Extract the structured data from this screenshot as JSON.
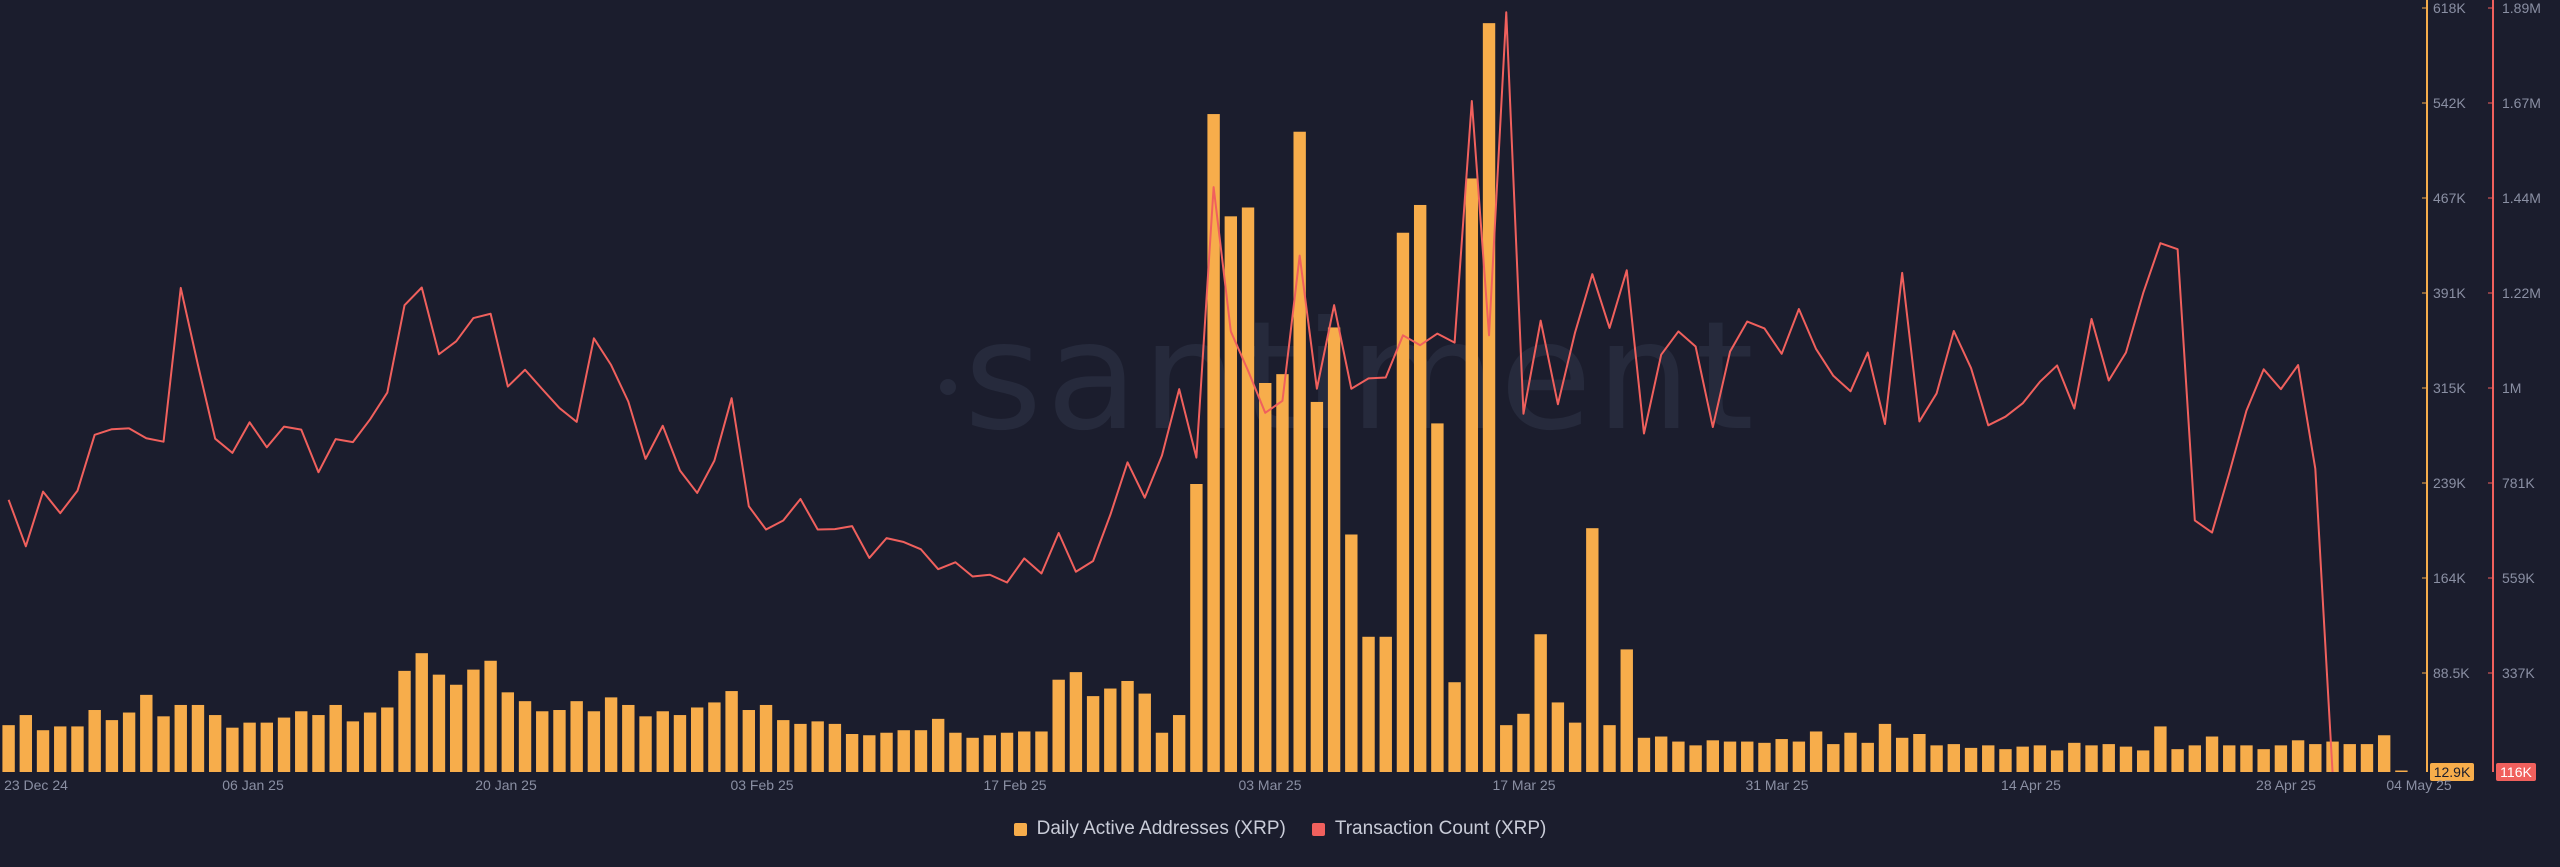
{
  "watermark": "santiment",
  "legend": [
    {
      "label": "Daily Active Addresses (XRP)",
      "color": "#f7ad4b"
    },
    {
      "label": "Transaction Count (XRP)",
      "color": "#f0605d"
    }
  ],
  "chart_data": {
    "type": "bar",
    "title": "",
    "x_ticks": [
      "23 Dec 24",
      "06 Jan 25",
      "20 Jan 25",
      "03 Feb 25",
      "17 Feb 25",
      "03 Mar 25",
      "17 Mar 25",
      "31 Mar 25",
      "14 Apr 25",
      "28 Apr 25",
      "04 May 25"
    ],
    "left_axis": {
      "name": "Daily Active Addresses (XRP)",
      "color": "#f7ad4b",
      "ticks": [
        "618K",
        "542K",
        "467K",
        "391K",
        "315K",
        "239K",
        "164K",
        "88.5K"
      ],
      "range": [
        12900,
        618000
      ],
      "current_label": "12.9K"
    },
    "right_axis": {
      "name": "Transaction Count (XRP)",
      "color": "#f0605d",
      "ticks": [
        "1.89M",
        "1.67M",
        "1.44M",
        "1.22M",
        "1M",
        "781K",
        "559K",
        "337K"
      ],
      "range": [
        116000,
        1890000
      ],
      "current_label": "116K"
    },
    "grid": false,
    "series": [
      {
        "name": "Daily Active Addresses (XRP)",
        "type": "bar",
        "color": "#f7ad4b",
        "values": [
          50000,
          58000,
          46000,
          49000,
          49000,
          62000,
          54000,
          60000,
          74000,
          57000,
          66000,
          66000,
          58000,
          48000,
          52000,
          52000,
          56000,
          61000,
          58000,
          66000,
          53000,
          60000,
          64000,
          93000,
          107000,
          90000,
          82000,
          94000,
          101000,
          76000,
          69000,
          61000,
          62000,
          69000,
          61000,
          72000,
          66000,
          57000,
          61000,
          58000,
          64000,
          68000,
          77000,
          62000,
          66000,
          54000,
          51000,
          53000,
          51000,
          43000,
          42000,
          44000,
          46000,
          46000,
          55000,
          44000,
          40000,
          42000,
          44000,
          45000,
          45000,
          86000,
          92000,
          73000,
          79000,
          85000,
          75000,
          44000,
          58000,
          241000,
          534000,
          453000,
          460000,
          321000,
          328000,
          520000,
          306000,
          365000,
          201000,
          120000,
          120000,
          440000,
          462000,
          289000,
          84000,
          483000,
          606000,
          50000,
          59000,
          122000,
          68000,
          52000,
          206000,
          50000,
          110000,
          40000,
          41000,
          37000,
          34000,
          38000,
          37000,
          37000,
          36000,
          39000,
          37000,
          45000,
          35000,
          44000,
          36000,
          51000,
          40000,
          43000,
          34000,
          35000,
          32000,
          34000,
          31000,
          33000,
          34000,
          30000,
          36000,
          34000,
          35000,
          33000,
          30000,
          49000,
          31000,
          34000,
          41000,
          34000,
          34000,
          31000,
          34000,
          38000,
          35000,
          37000,
          35000,
          35000,
          42000,
          12900
        ]
      },
      {
        "name": "Transaction Count (XRP)",
        "type": "line",
        "color": "#f0605d",
        "values": [
          748000,
          640000,
          767000,
          717000,
          769000,
          899000,
          912000,
          914000,
          891000,
          883000,
          1240000,
          1061000,
          890000,
          857000,
          928000,
          870000,
          918000,
          911000,
          812000,
          889000,
          882000,
          935000,
          997000,
          1200000,
          1241000,
          1086000,
          1116000,
          1170000,
          1180000,
          1011000,
          1050000,
          1005000,
          961000,
          929000,
          1123000,
          1061000,
          976000,
          843000,
          920000,
          816000,
          764000,
          839000,
          984000,
          733000,
          679000,
          700000,
          750000,
          679000,
          680000,
          687000,
          613000,
          659000,
          650000,
          633000,
          587000,
          603000,
          570000,
          574000,
          556000,
          612000,
          577000,
          671000,
          581000,
          606000,
          713000,
          835000,
          753000,
          851000,
          1005000,
          846000,
          1474000,
          1139000,
          1048000,
          950000,
          978000,
          1315000,
          1006000,
          1200000,
          1006000,
          1030000,
          1032000,
          1130000,
          1107000,
          1134000,
          1113000,
          1674000,
          1130000,
          1880000,
          948000,
          1164000,
          970000,
          1137000,
          1272000,
          1147000,
          1281000,
          902000,
          1085000,
          1139000,
          1104000,
          917000,
          1092000,
          1162000,
          1146000,
          1087000,
          1191000,
          1098000,
          1036000,
          1000000,
          1090000,
          924000,
          1275000,
          930000,
          995000,
          1140000,
          1054000,
          921000,
          941000,
          972000,
          1022000,
          1060000,
          960000,
          1168000,
          1025000,
          1090000,
          1228000,
          1344000,
          1330000,
          700000,
          672000,
          810000,
          955000,
          1051000,
          1005000,
          1061000,
          820000,
          116000
        ]
      }
    ]
  }
}
